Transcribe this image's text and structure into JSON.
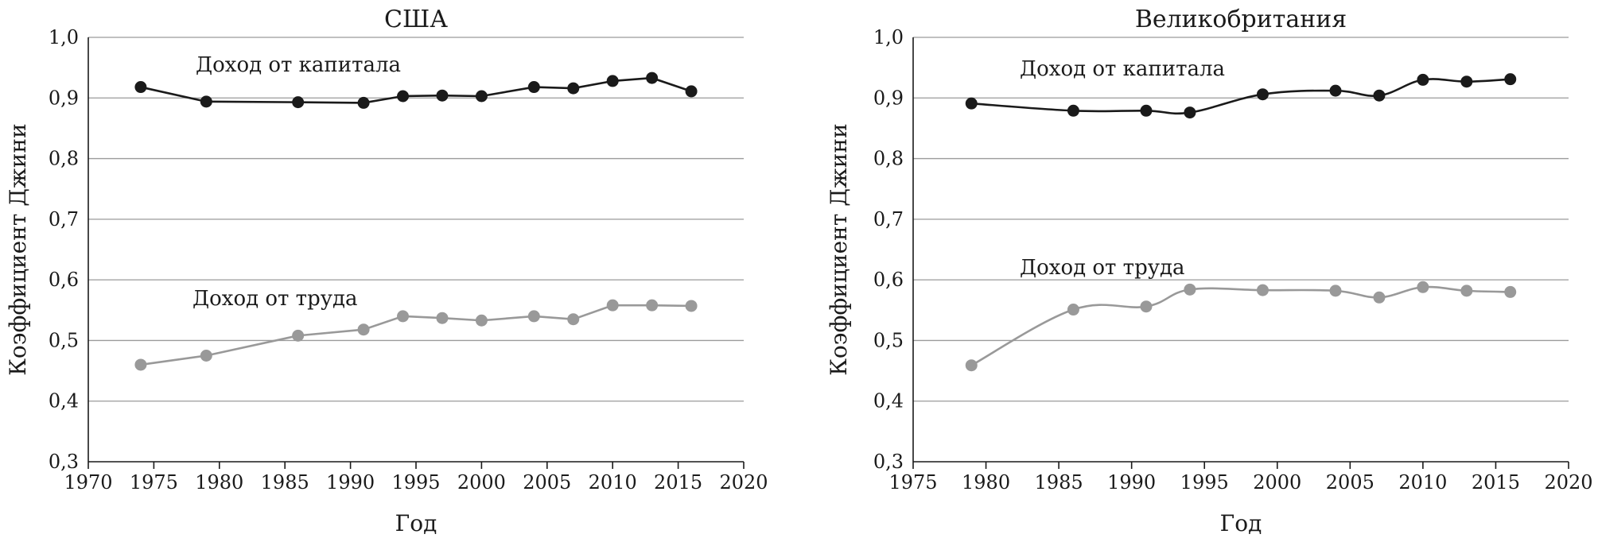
{
  "chart_data": [
    {
      "type": "line",
      "title": "США",
      "xlabel": "Год",
      "ylabel": "Коэффициент Джини",
      "xlim": [
        1970,
        2020
      ],
      "ylim": [
        0.3,
        1.0
      ],
      "xticks": [
        1970,
        1975,
        1980,
        1985,
        1990,
        1995,
        2000,
        2005,
        2010,
        2015,
        2020
      ],
      "yticks": [
        "0,3",
        "0,4",
        "0,5",
        "0,6",
        "0,7",
        "0,8",
        "0,9",
        "1,0"
      ],
      "grid": "horizontal",
      "series": [
        {
          "name": "Доход от капитала",
          "color": "#1a1a1a",
          "x": [
            1974,
            1979,
            1986,
            1991,
            1994,
            1997,
            2000,
            2004,
            2007,
            2010,
            2013,
            2016
          ],
          "y": [
            0.918,
            0.894,
            0.893,
            0.892,
            0.903,
            0.904,
            0.903,
            0.918,
            0.916,
            0.928,
            0.933,
            0.911
          ]
        },
        {
          "name": "Доход от труда",
          "color": "#999999",
          "x": [
            1974,
            1979,
            1986,
            1991,
            1994,
            1997,
            2000,
            2004,
            2007,
            2010,
            2013,
            2016
          ],
          "y": [
            0.46,
            0.475,
            0.508,
            0.518,
            0.54,
            0.537,
            0.533,
            0.54,
            0.535,
            0.558,
            0.558,
            0.557
          ]
        }
      ]
    },
    {
      "type": "line",
      "title": "Великобритания",
      "xlabel": "Год",
      "ylabel": "Коэффициент Джини",
      "xlim": [
        1975,
        2020
      ],
      "ylim": [
        0.3,
        1.0
      ],
      "xticks": [
        1975,
        1980,
        1985,
        1990,
        1995,
        2000,
        2005,
        2010,
        2015,
        2020
      ],
      "yticks": [
        "0,3",
        "0,4",
        "0,5",
        "0,6",
        "0,7",
        "0,8",
        "0,9",
        "1,0"
      ],
      "grid": "horizontal",
      "series": [
        {
          "name": "Доход от капитала",
          "color": "#1a1a1a",
          "x": [
            1979,
            1986,
            1991,
            1994,
            1999,
            2004,
            2007,
            2010,
            2013,
            2016
          ],
          "y": [
            0.891,
            0.879,
            0.879,
            0.876,
            0.906,
            0.912,
            0.904,
            0.93,
            0.927,
            0.931
          ]
        },
        {
          "name": "Доход от труда",
          "color": "#999999",
          "x": [
            1979,
            1986,
            1991,
            1994,
            1999,
            2004,
            2007,
            2010,
            2013,
            2016
          ],
          "y": [
            0.459,
            0.551,
            0.556,
            0.584,
            0.583,
            0.582,
            0.571,
            0.588,
            0.582,
            0.58
          ]
        }
      ]
    }
  ]
}
